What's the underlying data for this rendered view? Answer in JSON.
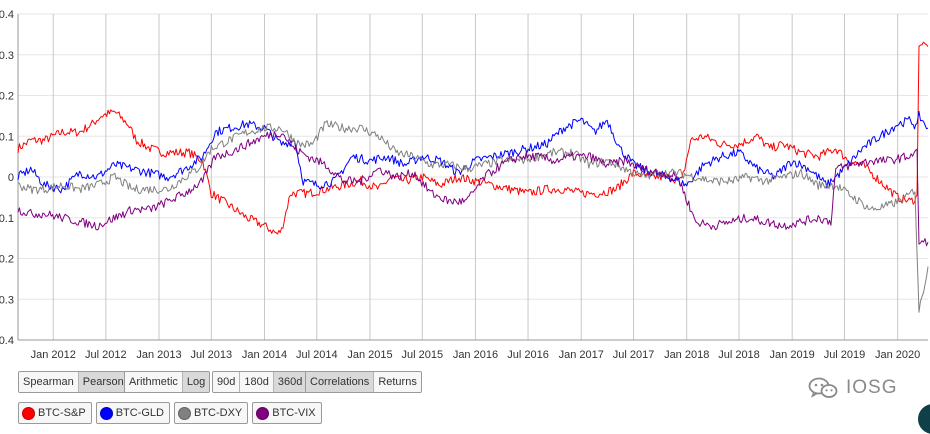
{
  "chart_data": {
    "type": "line",
    "ylim": [
      -0.4,
      0.4
    ],
    "y_ticks": [
      "-0.4",
      "-0.3",
      "-0.2",
      "-0.1",
      "0",
      "0.1",
      "0.2",
      "0.3",
      "0.4"
    ],
    "x_range": [
      "2011-09-01",
      "2020-04-15"
    ],
    "x_ticks": [
      "Jan 2012",
      "Jul 2012",
      "Jan 2013",
      "Jul 2013",
      "Jan 2014",
      "Jul 2014",
      "Jan 2015",
      "Jul 2015",
      "Jan 2016",
      "Jul 2016",
      "Jan 2017",
      "Jul 2017",
      "Jan 2018",
      "Jul 2018",
      "Jan 2019",
      "Jul 2019",
      "Jan 2020"
    ],
    "grid": true,
    "series": [
      {
        "name": "BTC-S&P",
        "color": "#ff0000",
        "points": [
          [
            "2011-09-01",
            0.07
          ],
          [
            "2011-10-15",
            0.09
          ],
          [
            "2011-12-01",
            0.09
          ],
          [
            "2012-02-01",
            0.11
          ],
          [
            "2012-04-01",
            0.11
          ],
          [
            "2012-05-15",
            0.13
          ],
          [
            "2012-06-15",
            0.15
          ],
          [
            "2012-08-01",
            0.16
          ],
          [
            "2012-09-15",
            0.13
          ],
          [
            "2012-10-15",
            0.09
          ],
          [
            "2012-12-01",
            0.07
          ],
          [
            "2013-01-15",
            0.06
          ],
          [
            "2013-03-01",
            0.06
          ],
          [
            "2013-04-15",
            0.06
          ],
          [
            "2013-06-01",
            0.04
          ],
          [
            "2013-07-01",
            -0.04
          ],
          [
            "2013-09-01",
            -0.07
          ],
          [
            "2013-11-01",
            -0.1
          ],
          [
            "2014-01-01",
            -0.12
          ],
          [
            "2014-02-15",
            -0.14
          ],
          [
            "2014-03-01",
            -0.13
          ],
          [
            "2014-04-01",
            -0.04
          ],
          [
            "2014-06-01",
            -0.04
          ],
          [
            "2014-08-01",
            -0.03
          ],
          [
            "2014-10-01",
            -0.02
          ],
          [
            "2014-12-01",
            -0.01
          ],
          [
            "2015-02-01",
            -0.03
          ],
          [
            "2015-03-15",
            0.0
          ],
          [
            "2015-05-01",
            -0.01
          ],
          [
            "2015-07-01",
            0.0
          ],
          [
            "2015-09-01",
            -0.02
          ],
          [
            "2015-11-01",
            0.0
          ],
          [
            "2016-01-01",
            -0.01
          ],
          [
            "2016-03-01",
            -0.02
          ],
          [
            "2016-05-01",
            -0.03
          ],
          [
            "2016-07-01",
            -0.04
          ],
          [
            "2016-09-01",
            -0.03
          ],
          [
            "2016-11-01",
            -0.03
          ],
          [
            "2017-01-01",
            -0.04
          ],
          [
            "2017-03-01",
            -0.04
          ],
          [
            "2017-05-01",
            -0.03
          ],
          [
            "2017-07-01",
            0.01
          ],
          [
            "2017-09-01",
            0.0
          ],
          [
            "2017-11-01",
            0.0
          ],
          [
            "2017-12-15",
            -0.01
          ],
          [
            "2018-01-15",
            0.09
          ],
          [
            "2018-03-01",
            0.1
          ],
          [
            "2018-05-01",
            0.08
          ],
          [
            "2018-07-01",
            0.08
          ],
          [
            "2018-09-01",
            0.1
          ],
          [
            "2018-10-15",
            0.07
          ],
          [
            "2018-12-01",
            0.08
          ],
          [
            "2019-02-01",
            0.06
          ],
          [
            "2019-04-01",
            0.05
          ],
          [
            "2019-06-01",
            0.07
          ],
          [
            "2019-07-15",
            0.04
          ],
          [
            "2019-09-01",
            0.03
          ],
          [
            "2019-11-01",
            -0.01
          ],
          [
            "2020-01-01",
            -0.05
          ],
          [
            "2020-02-15",
            -0.06
          ],
          [
            "2020-03-08",
            -0.05
          ],
          [
            "2020-03-15",
            0.33
          ],
          [
            "2020-04-15",
            0.32
          ]
        ]
      },
      {
        "name": "BTC-GLD",
        "color": "#0000ff",
        "points": [
          [
            "2011-09-01",
            0.0
          ],
          [
            "2011-10-15",
            0.02
          ],
          [
            "2011-12-01",
            -0.02
          ],
          [
            "2012-02-01",
            -0.03
          ],
          [
            "2012-04-01",
            0.01
          ],
          [
            "2012-06-01",
            0.0
          ],
          [
            "2012-08-01",
            0.03
          ],
          [
            "2012-10-01",
            0.02
          ],
          [
            "2012-12-01",
            0.01
          ],
          [
            "2013-02-01",
            0.0
          ],
          [
            "2013-04-01",
            0.02
          ],
          [
            "2013-06-01",
            0.05
          ],
          [
            "2013-07-15",
            0.11
          ],
          [
            "2013-09-01",
            0.12
          ],
          [
            "2013-11-01",
            0.13
          ],
          [
            "2014-01-01",
            0.12
          ],
          [
            "2014-03-01",
            0.08
          ],
          [
            "2014-04-15",
            0.09
          ],
          [
            "2014-05-15",
            -0.01
          ],
          [
            "2014-07-01",
            -0.02
          ],
          [
            "2014-09-01",
            -0.01
          ],
          [
            "2014-11-01",
            0.05
          ],
          [
            "2015-01-01",
            0.04
          ],
          [
            "2015-03-01",
            0.05
          ],
          [
            "2015-05-01",
            0.03
          ],
          [
            "2015-07-01",
            0.05
          ],
          [
            "2015-09-01",
            0.04
          ],
          [
            "2015-11-01",
            0.01
          ],
          [
            "2016-01-01",
            0.04
          ],
          [
            "2016-03-01",
            0.05
          ],
          [
            "2016-05-01",
            0.06
          ],
          [
            "2016-07-01",
            0.07
          ],
          [
            "2016-09-01",
            0.08
          ],
          [
            "2016-11-01",
            0.12
          ],
          [
            "2017-01-01",
            0.14
          ],
          [
            "2017-02-15",
            0.11
          ],
          [
            "2017-04-01",
            0.14
          ],
          [
            "2017-05-15",
            0.07
          ],
          [
            "2017-07-01",
            0.03
          ],
          [
            "2017-09-01",
            0.01
          ],
          [
            "2017-11-01",
            0.0
          ],
          [
            "2018-01-01",
            -0.02
          ],
          [
            "2018-03-01",
            0.03
          ],
          [
            "2018-05-01",
            0.05
          ],
          [
            "2018-07-01",
            0.06
          ],
          [
            "2018-09-01",
            0.02
          ],
          [
            "2018-11-01",
            0.0
          ],
          [
            "2019-01-01",
            0.04
          ],
          [
            "2019-03-01",
            0.02
          ],
          [
            "2019-05-01",
            -0.02
          ],
          [
            "2019-07-01",
            0.02
          ],
          [
            "2019-09-01",
            0.07
          ],
          [
            "2019-11-01",
            0.1
          ],
          [
            "2020-01-01",
            0.13
          ],
          [
            "2020-02-15",
            0.14
          ],
          [
            "2020-03-08",
            0.12
          ],
          [
            "2020-03-15",
            0.15
          ],
          [
            "2020-04-15",
            0.12
          ]
        ]
      },
      {
        "name": "BTC-DXY",
        "color": "#808080",
        "points": [
          [
            "2011-09-01",
            -0.02
          ],
          [
            "2011-10-15",
            -0.03
          ],
          [
            "2011-12-01",
            -0.03
          ],
          [
            "2012-02-01",
            -0.02
          ],
          [
            "2012-04-01",
            -0.03
          ],
          [
            "2012-06-01",
            -0.02
          ],
          [
            "2012-08-01",
            0.0
          ],
          [
            "2012-10-01",
            -0.03
          ],
          [
            "2012-12-01",
            -0.03
          ],
          [
            "2013-02-01",
            -0.03
          ],
          [
            "2013-04-01",
            0.0
          ],
          [
            "2013-05-15",
            0.02
          ],
          [
            "2013-07-01",
            0.07
          ],
          [
            "2013-09-01",
            0.09
          ],
          [
            "2013-11-01",
            0.11
          ],
          [
            "2014-01-01",
            0.12
          ],
          [
            "2014-03-01",
            0.12
          ],
          [
            "2014-05-01",
            0.08
          ],
          [
            "2014-06-15",
            0.08
          ],
          [
            "2014-08-01",
            0.13
          ],
          [
            "2014-10-01",
            0.12
          ],
          [
            "2014-12-01",
            0.12
          ],
          [
            "2015-02-01",
            0.1
          ],
          [
            "2015-04-01",
            0.06
          ],
          [
            "2015-06-01",
            0.05
          ],
          [
            "2015-08-01",
            0.03
          ],
          [
            "2015-10-01",
            0.03
          ],
          [
            "2015-12-01",
            0.02
          ],
          [
            "2016-02-01",
            0.03
          ],
          [
            "2016-04-01",
            0.04
          ],
          [
            "2016-06-01",
            0.04
          ],
          [
            "2016-08-01",
            0.05
          ],
          [
            "2016-10-01",
            0.06
          ],
          [
            "2016-12-01",
            0.06
          ],
          [
            "2017-02-01",
            0.03
          ],
          [
            "2017-04-01",
            0.04
          ],
          [
            "2017-06-01",
            0.02
          ],
          [
            "2017-08-01",
            0.0
          ],
          [
            "2017-10-01",
            0.01
          ],
          [
            "2017-12-01",
            0.01
          ],
          [
            "2018-02-01",
            0.0
          ],
          [
            "2018-04-01",
            -0.01
          ],
          [
            "2018-06-01",
            -0.01
          ],
          [
            "2018-08-01",
            0.0
          ],
          [
            "2018-10-01",
            -0.01
          ],
          [
            "2018-12-01",
            0.0
          ],
          [
            "2019-02-01",
            0.01
          ],
          [
            "2019-04-01",
            -0.02
          ],
          [
            "2019-06-01",
            -0.02
          ],
          [
            "2019-08-01",
            -0.05
          ],
          [
            "2019-10-01",
            -0.08
          ],
          [
            "2019-12-01",
            -0.07
          ],
          [
            "2020-02-01",
            -0.05
          ],
          [
            "2020-03-01",
            -0.03
          ],
          [
            "2020-03-15",
            -0.33
          ],
          [
            "2020-04-15",
            -0.22
          ]
        ]
      },
      {
        "name": "BTC-VIX",
        "color": "#800080",
        "points": [
          [
            "2011-09-01",
            -0.08
          ],
          [
            "2011-10-15",
            -0.09
          ],
          [
            "2011-12-01",
            -0.09
          ],
          [
            "2012-02-01",
            -0.1
          ],
          [
            "2012-04-01",
            -0.11
          ],
          [
            "2012-06-01",
            -0.12
          ],
          [
            "2012-08-01",
            -0.1
          ],
          [
            "2012-10-01",
            -0.08
          ],
          [
            "2012-12-01",
            -0.08
          ],
          [
            "2013-02-01",
            -0.06
          ],
          [
            "2013-04-01",
            -0.04
          ],
          [
            "2013-06-01",
            -0.01
          ],
          [
            "2013-07-15",
            0.05
          ],
          [
            "2013-09-01",
            0.06
          ],
          [
            "2013-11-01",
            0.08
          ],
          [
            "2014-01-01",
            0.1
          ],
          [
            "2014-03-01",
            0.11
          ],
          [
            "2014-04-15",
            0.07
          ],
          [
            "2014-06-01",
            0.05
          ],
          [
            "2014-08-01",
            0.03
          ],
          [
            "2014-10-01",
            -0.01
          ],
          [
            "2014-12-01",
            -0.01
          ],
          [
            "2015-02-01",
            0.02
          ],
          [
            "2015-04-01",
            0.0
          ],
          [
            "2015-06-01",
            0.01
          ],
          [
            "2015-08-01",
            -0.04
          ],
          [
            "2015-10-01",
            -0.06
          ],
          [
            "2015-12-01",
            -0.06
          ],
          [
            "2016-02-01",
            0.0
          ],
          [
            "2016-04-01",
            0.03
          ],
          [
            "2016-06-01",
            0.05
          ],
          [
            "2016-08-01",
            0.05
          ],
          [
            "2016-10-01",
            0.04
          ],
          [
            "2016-12-01",
            0.05
          ],
          [
            "2017-02-01",
            0.05
          ],
          [
            "2017-04-01",
            0.03
          ],
          [
            "2017-06-01",
            0.04
          ],
          [
            "2017-08-01",
            0.02
          ],
          [
            "2017-10-01",
            0.01
          ],
          [
            "2017-12-01",
            0.0
          ],
          [
            "2018-02-01",
            -0.11
          ],
          [
            "2018-04-01",
            -0.12
          ],
          [
            "2018-06-01",
            -0.11
          ],
          [
            "2018-08-01",
            -0.1
          ],
          [
            "2018-10-01",
            -0.11
          ],
          [
            "2018-12-01",
            -0.12
          ],
          [
            "2019-02-01",
            -0.11
          ],
          [
            "2019-04-01",
            -0.1
          ],
          [
            "2019-05-15",
            -0.11
          ],
          [
            "2019-06-01",
            0.02
          ],
          [
            "2019-08-01",
            0.03
          ],
          [
            "2019-10-01",
            0.04
          ],
          [
            "2019-12-01",
            0.04
          ],
          [
            "2020-02-01",
            0.05
          ],
          [
            "2020-03-08",
            0.06
          ],
          [
            "2020-03-15",
            -0.16
          ],
          [
            "2020-04-15",
            -0.16
          ]
        ]
      }
    ]
  },
  "controls": {
    "method": [
      "Spearman",
      "Pearson"
    ],
    "returns_type": [
      "Arithmetic",
      "Log"
    ],
    "window": [
      "90d",
      "180d",
      "360d"
    ],
    "view": [
      "Correlations",
      "Returns"
    ]
  },
  "legend": [
    {
      "label": "BTC-S&P",
      "color": "#ff0000"
    },
    {
      "label": "BTC-GLD",
      "color": "#0000ff"
    },
    {
      "label": "BTC-DXY",
      "color": "#808080"
    },
    {
      "label": "BTC-VIX",
      "color": "#800080"
    }
  ],
  "watermark": {
    "text": "IOSG",
    "icon": "wechat-icon"
  }
}
